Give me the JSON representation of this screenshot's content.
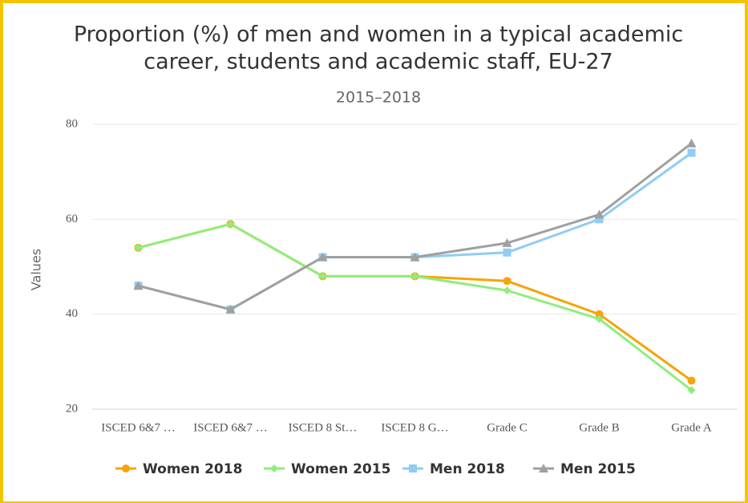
{
  "chart_data": {
    "type": "line",
    "title": [
      "Proportion (%) of men and women in a typical academic",
      "career, students and academic staff, EU-27"
    ],
    "subtitle": "2015–2018",
    "y_label": "Values",
    "categories": [
      "ISCED 6&7 …",
      "ISCED 6&7 …",
      "ISCED 8 St…",
      "ISCED 8 G…",
      "Grade C",
      "Grade B",
      "Grade A"
    ],
    "series": [
      {
        "name": "Women 2018",
        "color": "#f7a30a",
        "marker": "circle",
        "values": [
          54,
          59,
          48,
          48,
          47,
          40,
          26
        ]
      },
      {
        "name": "Women 2015",
        "color": "#90ed7d",
        "marker": "diamond",
        "values": [
          54,
          59,
          48,
          48,
          45,
          39,
          24
        ]
      },
      {
        "name": "Men 2018",
        "color": "#8fcdf5",
        "marker": "square",
        "values": [
          46,
          41,
          52,
          52,
          53,
          60,
          74
        ]
      },
      {
        "name": "Men 2015",
        "color": "#a0a0a0",
        "marker": "triangle",
        "values": [
          46,
          41,
          52,
          52,
          55,
          61,
          76
        ]
      }
    ],
    "ylim": [
      20,
      80
    ],
    "yticks": [
      20,
      40,
      60,
      80
    ],
    "grid": true,
    "legend": "bottom"
  }
}
